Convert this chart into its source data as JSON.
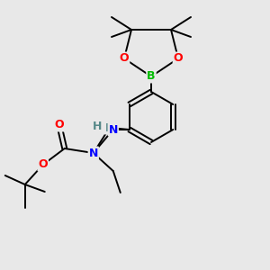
{
  "bg_color": "#e8e8e8",
  "bond_color": "#000000",
  "atom_colors": {
    "O": "#ff0000",
    "N": "#0000ff",
    "B": "#00bb00",
    "H": "#558888",
    "C": "#000000"
  },
  "figsize": [
    3.0,
    3.0
  ],
  "dpi": 100,
  "lw": 1.4,
  "fontsize": 9
}
